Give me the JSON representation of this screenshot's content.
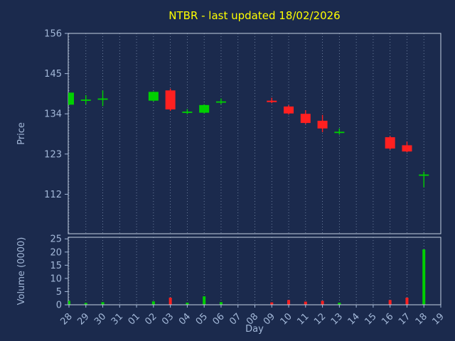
{
  "title": "NTBR - last updated 18/02/2026",
  "chart_data": {
    "type": "candlestick",
    "title": "NTBR - last updated 18/02/2026",
    "xlabel": "Day",
    "ylabel_price": "Price",
    "ylabel_volume": "Volume (0000)",
    "price_ticks": [
      112,
      123,
      134,
      145,
      156
    ],
    "volume_ticks": [
      0,
      5,
      10,
      15,
      20,
      25
    ],
    "price_range": [
      101.2,
      156
    ],
    "volume_range": [
      0,
      25.6
    ],
    "grid": "vertical-dotted",
    "legend": "none",
    "days": [
      "28",
      "29",
      "30",
      "31",
      "01",
      "02",
      "03",
      "04",
      "05",
      "06",
      "07",
      "08",
      "09",
      "10",
      "11",
      "12",
      "13",
      "14",
      "15",
      "16",
      "17",
      "18",
      "19"
    ],
    "candles": [
      {
        "day": "28",
        "open": 136.5,
        "high": 139.8,
        "low": 136.4,
        "close": 139.8,
        "volume": 1.5
      },
      {
        "day": "29",
        "open": 137.8,
        "high": 139.1,
        "low": 136.6,
        "close": 137.9,
        "volume": 0.7
      },
      {
        "day": "30",
        "open": 138.0,
        "high": 140.4,
        "low": 136.1,
        "close": 138.2,
        "volume": 1.0
      },
      {
        "day": "02",
        "open": 137.6,
        "high": 140.1,
        "low": 137.4,
        "close": 140.0,
        "volume": 1.3
      },
      {
        "day": "03",
        "open": 140.4,
        "high": 140.9,
        "low": 134.8,
        "close": 135.2,
        "volume": 2.7
      },
      {
        "day": "04",
        "open": 134.4,
        "high": 135.3,
        "low": 133.9,
        "close": 134.6,
        "volume": 0.8
      },
      {
        "day": "05",
        "open": 134.3,
        "high": 136.6,
        "low": 134.1,
        "close": 136.4,
        "volume": 3.2
      },
      {
        "day": "06",
        "open": 137.2,
        "high": 138.2,
        "low": 136.6,
        "close": 137.4,
        "volume": 1.0
      },
      {
        "day": "09",
        "open": 137.6,
        "high": 138.4,
        "low": 136.9,
        "close": 137.2,
        "volume": 0.9
      },
      {
        "day": "10",
        "open": 136.0,
        "high": 136.4,
        "low": 133.8,
        "close": 134.1,
        "volume": 1.8
      },
      {
        "day": "11",
        "open": 134.0,
        "high": 135.0,
        "low": 131.2,
        "close": 131.5,
        "volume": 1.2
      },
      {
        "day": "12",
        "open": 132.1,
        "high": 133.7,
        "low": 129.0,
        "close": 130.0,
        "volume": 1.5
      },
      {
        "day": "13",
        "open": 128.9,
        "high": 130.0,
        "low": 128.3,
        "close": 129.1,
        "volume": 0.8
      },
      {
        "day": "16",
        "open": 127.6,
        "high": 127.9,
        "low": 124.2,
        "close": 124.5,
        "volume": 1.8
      },
      {
        "day": "17",
        "open": 125.4,
        "high": 126.4,
        "low": 123.5,
        "close": 123.7,
        "volume": 2.7
      },
      {
        "day": "18",
        "open": 117.2,
        "high": 118.2,
        "low": 113.9,
        "close": 117.4,
        "volume": 21.0
      }
    ],
    "colors": {
      "background": "#1b2a4d",
      "title": "#ffff00",
      "axis_text": "#a3b8d8",
      "spine": "#c6d2e2",
      "grid": "#8fa3c0",
      "up": "#00d000",
      "down": "#ff2020"
    }
  }
}
